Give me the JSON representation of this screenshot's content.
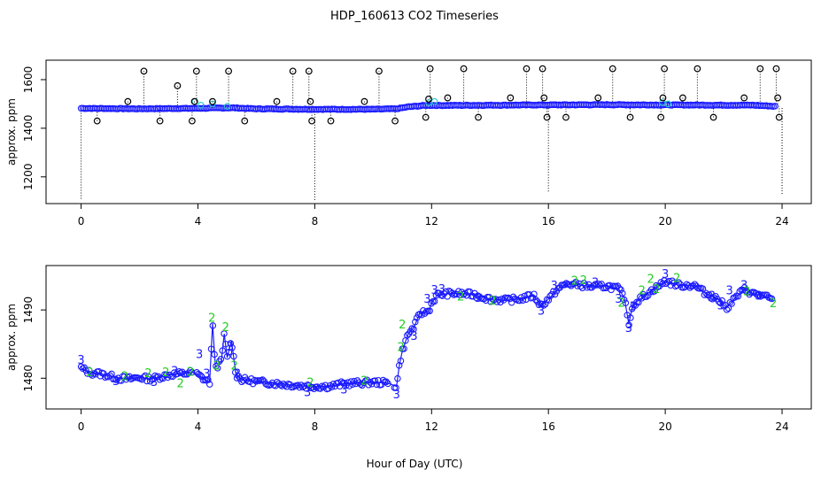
{
  "title": "HDP_160613  CO2 Timeseries",
  "x_axis_label": "Hour of Day (UTC)",
  "chart_data": [
    {
      "type": "scatter",
      "panel": "top",
      "ylabel": "approx. ppm",
      "xlim": [
        -1.2,
        25
      ],
      "ylim": [
        1090,
        1680
      ],
      "x_ticks": [
        0,
        4,
        8,
        12,
        16,
        20,
        24
      ],
      "y_ticks": [
        1200,
        1400,
        1600
      ],
      "colors": {
        "points": "#1a1aff",
        "highlight": "#22c8c8",
        "outliers": "#000000"
      },
      "baseline": [
        [
          0.0,
          1482
        ],
        [
          2.0,
          1480
        ],
        [
          4.0,
          1482
        ],
        [
          5.2,
          1484
        ],
        [
          6.0,
          1480
        ],
        [
          8.0,
          1478
        ],
        [
          10.0,
          1478
        ],
        [
          10.8,
          1480
        ],
        [
          11.2,
          1488
        ],
        [
          11.8,
          1494
        ],
        [
          12.5,
          1494
        ],
        [
          16.0,
          1496
        ],
        [
          18.0,
          1497
        ],
        [
          19.5,
          1496
        ],
        [
          20.0,
          1496
        ],
        [
          22.0,
          1495
        ],
        [
          23.0,
          1495
        ],
        [
          23.8,
          1490
        ]
      ],
      "highlight_points": [
        [
          3.9,
          1510
        ],
        [
          4.1,
          1495
        ],
        [
          4.5,
          1500
        ],
        [
          5.0,
          1490
        ],
        [
          11.9,
          1505
        ],
        [
          12.1,
          1510
        ],
        [
          19.9,
          1505
        ],
        [
          20.1,
          1500
        ]
      ],
      "outliers": [
        [
          0.0,
          1110
        ],
        [
          0.55,
          1430
        ],
        [
          1.6,
          1510
        ],
        [
          2.15,
          1635
        ],
        [
          2.7,
          1430
        ],
        [
          3.3,
          1575
        ],
        [
          3.8,
          1430
        ],
        [
          3.88,
          1510
        ],
        [
          3.95,
          1635
        ],
        [
          4.5,
          1510
        ],
        [
          5.05,
          1635
        ],
        [
          5.6,
          1430
        ],
        [
          6.7,
          1510
        ],
        [
          7.25,
          1635
        ],
        [
          7.8,
          1635
        ],
        [
          7.85,
          1510
        ],
        [
          7.9,
          1430
        ],
        [
          8.0,
          1105
        ],
        [
          8.55,
          1430
        ],
        [
          9.7,
          1510
        ],
        [
          10.2,
          1635
        ],
        [
          10.75,
          1430
        ],
        [
          11.8,
          1445
        ],
        [
          11.9,
          1520
        ],
        [
          11.95,
          1645
        ],
        [
          12.55,
          1525
        ],
        [
          13.1,
          1645
        ],
        [
          13.6,
          1445
        ],
        [
          14.7,
          1525
        ],
        [
          15.25,
          1645
        ],
        [
          15.8,
          1645
        ],
        [
          15.85,
          1525
        ],
        [
          15.95,
          1445
        ],
        [
          16.0,
          1140
        ],
        [
          16.6,
          1445
        ],
        [
          17.7,
          1525
        ],
        [
          18.2,
          1645
        ],
        [
          18.8,
          1445
        ],
        [
          19.85,
          1445
        ],
        [
          19.92,
          1525
        ],
        [
          19.97,
          1645
        ],
        [
          20.6,
          1525
        ],
        [
          21.1,
          1645
        ],
        [
          21.65,
          1445
        ],
        [
          22.7,
          1525
        ],
        [
          23.25,
          1645
        ],
        [
          23.8,
          1645
        ],
        [
          23.85,
          1525
        ],
        [
          23.9,
          1445
        ],
        [
          24.0,
          1130
        ]
      ]
    },
    {
      "type": "line",
      "panel": "bottom",
      "ylabel": "approx. ppm",
      "xlim": [
        -1.2,
        25
      ],
      "ylim": [
        1475.5,
        1496.5
      ],
      "x_ticks": [
        0,
        4,
        8,
        12,
        16,
        20,
        24
      ],
      "y_ticks": [
        1480,
        1490
      ],
      "colors": {
        "points": "#1a1aff",
        "label_2": "#22cc22",
        "label_3": "#1a1aff"
      },
      "series": [
        [
          0.0,
          1481.5
        ],
        [
          0.3,
          1480.8
        ],
        [
          0.6,
          1480.7
        ],
        [
          1.0,
          1480.3
        ],
        [
          1.3,
          1480.0
        ],
        [
          1.6,
          1479.9
        ],
        [
          2.0,
          1480.1
        ],
        [
          2.4,
          1479.9
        ],
        [
          2.8,
          1480.3
        ],
        [
          3.2,
          1480.6
        ],
        [
          3.6,
          1480.7
        ],
        [
          3.8,
          1480.9
        ],
        [
          4.0,
          1480.5
        ],
        [
          4.2,
          1479.9
        ],
        [
          4.4,
          1479.4
        ],
        [
          4.5,
          1488.0
        ],
        [
          4.6,
          1481.5
        ],
        [
          4.8,
          1482.5
        ],
        [
          4.9,
          1486.5
        ],
        [
          5.0,
          1483.0
        ],
        [
          5.15,
          1485.5
        ],
        [
          5.3,
          1480.5
        ],
        [
          5.5,
          1479.8
        ],
        [
          6.0,
          1479.5
        ],
        [
          6.5,
          1479.3
        ],
        [
          7.0,
          1479.1
        ],
        [
          7.5,
          1478.9
        ],
        [
          8.0,
          1478.8
        ],
        [
          8.5,
          1478.8
        ],
        [
          9.0,
          1479.2
        ],
        [
          9.5,
          1479.3
        ],
        [
          10.0,
          1479.4
        ],
        [
          10.5,
          1479.3
        ],
        [
          10.8,
          1478.8
        ],
        [
          10.9,
          1482.0
        ],
        [
          11.0,
          1484.0
        ],
        [
          11.2,
          1486.5
        ],
        [
          11.4,
          1487.5
        ],
        [
          11.6,
          1489.5
        ],
        [
          11.9,
          1489.8
        ],
        [
          12.0,
          1491.0
        ],
        [
          12.2,
          1492.2
        ],
        [
          12.6,
          1492.4
        ],
        [
          13.0,
          1492.4
        ],
        [
          13.5,
          1492.2
        ],
        [
          14.0,
          1491.6
        ],
        [
          14.5,
          1491.4
        ],
        [
          15.0,
          1491.6
        ],
        [
          15.5,
          1492.1
        ],
        [
          15.75,
          1490.6
        ],
        [
          16.1,
          1492.0
        ],
        [
          16.3,
          1493.0
        ],
        [
          16.6,
          1493.8
        ],
        [
          17.0,
          1493.7
        ],
        [
          17.5,
          1493.4
        ],
        [
          18.0,
          1493.5
        ],
        [
          18.4,
          1493.1
        ],
        [
          18.6,
          1491.8
        ],
        [
          18.75,
          1488.0
        ],
        [
          18.9,
          1490.8
        ],
        [
          19.2,
          1491.8
        ],
        [
          19.5,
          1492.7
        ],
        [
          19.8,
          1493.6
        ],
        [
          20.0,
          1494.2
        ],
        [
          20.5,
          1493.6
        ],
        [
          21.0,
          1493.6
        ],
        [
          21.4,
          1492.4
        ],
        [
          21.8,
          1491.6
        ],
        [
          22.1,
          1490.3
        ],
        [
          22.4,
          1491.8
        ],
        [
          22.7,
          1493.0
        ],
        [
          23.0,
          1492.4
        ],
        [
          23.4,
          1492.0
        ],
        [
          23.7,
          1491.4
        ]
      ],
      "point_labels": [
        {
          "x": 0.0,
          "y": 1482.6,
          "text": "3"
        },
        {
          "x": 0.3,
          "y": 1480.8,
          "text": "2"
        },
        {
          "x": 1.2,
          "y": 1479.5,
          "text": "3"
        },
        {
          "x": 1.5,
          "y": 1480.2,
          "text": "2"
        },
        {
          "x": 2.3,
          "y": 1480.7,
          "text": "2"
        },
        {
          "x": 2.5,
          "y": 1479.4,
          "text": "3"
        },
        {
          "x": 2.9,
          "y": 1480.8,
          "text": "2"
        },
        {
          "x": 3.2,
          "y": 1481.0,
          "text": "3"
        },
        {
          "x": 3.4,
          "y": 1479.2,
          "text": "2"
        },
        {
          "x": 3.75,
          "y": 1480.9,
          "text": "2"
        },
        {
          "x": 4.05,
          "y": 1483.5,
          "text": "3"
        },
        {
          "x": 4.3,
          "y": 1480.6,
          "text": "3"
        },
        {
          "x": 4.48,
          "y": 1488.8,
          "text": "2"
        },
        {
          "x": 4.65,
          "y": 1481.8,
          "text": "2"
        },
        {
          "x": 4.95,
          "y": 1487.4,
          "text": "2"
        },
        {
          "x": 5.1,
          "y": 1484.6,
          "text": "3"
        },
        {
          "x": 5.25,
          "y": 1481.8,
          "text": "2"
        },
        {
          "x": 5.35,
          "y": 1480.6,
          "text": "3"
        },
        {
          "x": 7.85,
          "y": 1479.3,
          "text": "2"
        },
        {
          "x": 7.75,
          "y": 1477.9,
          "text": "3"
        },
        {
          "x": 9.0,
          "y": 1478.3,
          "text": "3"
        },
        {
          "x": 9.7,
          "y": 1479.6,
          "text": "2"
        },
        {
          "x": 10.8,
          "y": 1477.6,
          "text": "3"
        },
        {
          "x": 10.95,
          "y": 1484.5,
          "text": "2"
        },
        {
          "x": 11.0,
          "y": 1487.8,
          "text": "2"
        },
        {
          "x": 11.4,
          "y": 1486.1,
          "text": "3"
        },
        {
          "x": 11.85,
          "y": 1491.6,
          "text": "3"
        },
        {
          "x": 12.1,
          "y": 1492.9,
          "text": "3"
        },
        {
          "x": 12.35,
          "y": 1493.0,
          "text": "3"
        },
        {
          "x": 13.0,
          "y": 1491.9,
          "text": "2"
        },
        {
          "x": 13.6,
          "y": 1491.7,
          "text": "3"
        },
        {
          "x": 14.1,
          "y": 1491.3,
          "text": "2"
        },
        {
          "x": 15.75,
          "y": 1489.8,
          "text": "3"
        },
        {
          "x": 16.2,
          "y": 1493.5,
          "text": "3"
        },
        {
          "x": 16.9,
          "y": 1494.2,
          "text": "2"
        },
        {
          "x": 17.2,
          "y": 1494.3,
          "text": "2"
        },
        {
          "x": 17.6,
          "y": 1494.0,
          "text": "3"
        },
        {
          "x": 18.4,
          "y": 1491.6,
          "text": "3"
        },
        {
          "x": 18.5,
          "y": 1491.0,
          "text": "2"
        },
        {
          "x": 18.75,
          "y": 1487.3,
          "text": "3"
        },
        {
          "x": 18.9,
          "y": 1490.5,
          "text": "3"
        },
        {
          "x": 19.2,
          "y": 1492.8,
          "text": "2"
        },
        {
          "x": 19.5,
          "y": 1494.5,
          "text": "2"
        },
        {
          "x": 19.7,
          "y": 1493.0,
          "text": "2"
        },
        {
          "x": 20.0,
          "y": 1495.2,
          "text": "3"
        },
        {
          "x": 20.4,
          "y": 1494.6,
          "text": "2"
        },
        {
          "x": 21.6,
          "y": 1492.0,
          "text": "3"
        },
        {
          "x": 21.9,
          "y": 1490.6,
          "text": "3"
        },
        {
          "x": 22.2,
          "y": 1492.8,
          "text": "3"
        },
        {
          "x": 22.7,
          "y": 1493.6,
          "text": "3"
        },
        {
          "x": 22.8,
          "y": 1492.7,
          "text": "2"
        },
        {
          "x": 23.2,
          "y": 1492.0,
          "text": "3"
        },
        {
          "x": 23.7,
          "y": 1490.9,
          "text": "2"
        }
      ]
    }
  ]
}
